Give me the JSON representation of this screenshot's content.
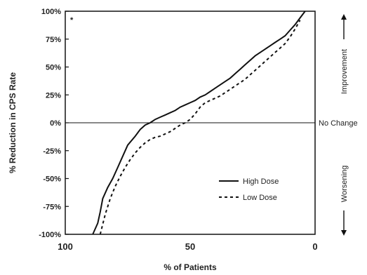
{
  "chart_data": {
    "type": "line",
    "title": "",
    "xlabel": "% of Patients",
    "ylabel": "% Reduction in CPS Rate",
    "xlim": [
      100,
      0
    ],
    "ylim": [
      -100,
      100
    ],
    "x_ticks": [
      "100",
      "50",
      "0"
    ],
    "y_ticks": [
      "100%",
      "75%",
      "50%",
      "25%",
      "0%",
      "-25%",
      "-50%",
      "-75%",
      "-100%"
    ],
    "corner_mark": "*",
    "reference_line": {
      "value": 0,
      "label": "No Change"
    },
    "side_labels": {
      "top": "Improvement",
      "bottom": "Worsening"
    },
    "legend_position": "lower-right",
    "series": [
      {
        "name": "High Dose",
        "style": "solid",
        "color": "#111111",
        "x": [
          89,
          87,
          86,
          85,
          83,
          81,
          79,
          77,
          75,
          72,
          70,
          68,
          66,
          64,
          62,
          60,
          58,
          56,
          54,
          52,
          50,
          48,
          46,
          44,
          42,
          40,
          38,
          36,
          34,
          32,
          30,
          28,
          26,
          24,
          22,
          20,
          18,
          16,
          14,
          12,
          10,
          8,
          6,
          4
        ],
        "y": [
          -100,
          -90,
          -80,
          -68,
          -58,
          -50,
          -40,
          -30,
          -20,
          -12,
          -6,
          -2,
          0,
          3,
          5,
          7,
          9,
          11,
          14,
          16,
          18,
          20,
          23,
          25,
          28,
          31,
          34,
          37,
          40,
          44,
          48,
          52,
          56,
          60,
          63,
          66,
          69,
          72,
          75,
          78,
          83,
          88,
          94,
          100
        ]
      },
      {
        "name": "Low Dose",
        "style": "dashed",
        "color": "#111111",
        "x": [
          86,
          84,
          82,
          80,
          78,
          76,
          74,
          72,
          70,
          68,
          66,
          64,
          62,
          60,
          58,
          56,
          54,
          52,
          50,
          48,
          46,
          44,
          42,
          40,
          38,
          36,
          34,
          32,
          30,
          28,
          26,
          24,
          22,
          20,
          18,
          16,
          14,
          12,
          10,
          8,
          6
        ],
        "y": [
          -100,
          -82,
          -68,
          -57,
          -48,
          -40,
          -33,
          -27,
          -22,
          -18,
          -15,
          -13,
          -12,
          -10,
          -8,
          -5,
          -2,
          0,
          3,
          8,
          14,
          18,
          20,
          22,
          24,
          27,
          30,
          33,
          36,
          39,
          43,
          47,
          51,
          55,
          59,
          63,
          67,
          71,
          77,
          84,
          92
        ]
      }
    ]
  }
}
